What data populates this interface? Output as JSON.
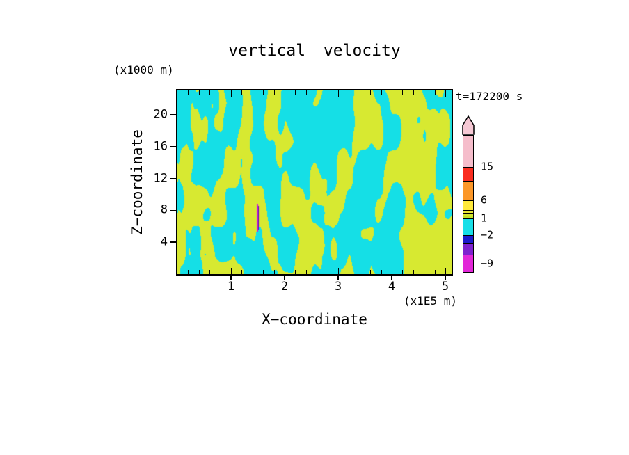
{
  "title": "vertical velocity",
  "timestamp": "t=172200 s",
  "axes": {
    "y_unit": "(x1000 m)",
    "x_unit": "(x1E5 m)",
    "y_label": "Z−coordinate",
    "x_label": "X−coordinate",
    "x_tick_labels": [
      "1",
      "2",
      "3",
      "4",
      "5"
    ],
    "y_tick_labels": [
      "4",
      "8",
      "12",
      "16",
      "20"
    ]
  },
  "field_render": {
    "positive_color": "#d7e931",
    "negative_color": "#15dfe6",
    "spike_colors": [
      "#cf1fd6",
      "#5a10b0"
    ]
  },
  "chart_data": {
    "type": "heatmap",
    "title": "vertical velocity",
    "xlabel": "X-coordinate",
    "ylabel": "Z-coordinate",
    "x_unit_note": "(x1E5 m)",
    "y_unit_note": "(x1000 m)",
    "time_label": "t=172200 s",
    "xlim": [
      0,
      5.1
    ],
    "ylim": [
      0,
      23
    ],
    "x_ticks": [
      1,
      2,
      3,
      4,
      5
    ],
    "y_ticks": [
      4,
      8,
      12,
      16,
      20
    ],
    "x_minor_step": 0.2,
    "grid": false,
    "legend_position": "right colorbar with upward arrow cap",
    "contour_levels": [
      -9,
      -2,
      1,
      6,
      15
    ],
    "field_summary": "Irregular interleaved cells filling the panel: yellow-green = weak positive vertical velocity (approx 1 to 6), cyan = weak negative (approx -2 to 1); fine vertical striping near the left boundary, broader cells in the upper right; one narrow intense downdraft streak (below -9, magenta/purple) near x=1.5 (x1E5 m), z=4-7 (x1000 m).",
    "colorbar": {
      "arrow_color": "#f5c8d4",
      "labels": [
        "15",
        "6",
        "1",
        "−2",
        "−9"
      ],
      "segments": [
        {
          "color": "#f5bdcb",
          "h": 46,
          "label": "15"
        },
        {
          "color": "#fa2d20",
          "h": 20
        },
        {
          "color": "#fc9728",
          "h": 28,
          "label": "6"
        },
        {
          "color": "#ffe93c",
          "h": 14
        },
        {
          "color": "#e9e838",
          "h": 4
        },
        {
          "color": "#d5e630",
          "h": 4
        },
        {
          "color": "#c0e229",
          "h": 4,
          "label": "1"
        },
        {
          "color": "#18dfe8",
          "h": 24,
          "label": "−2"
        },
        {
          "color": "#1c1bcd",
          "h": 11
        },
        {
          "color": "#7e22cf",
          "h": 17
        },
        {
          "color": "#e227d8",
          "h": 25,
          "label": "−9",
          "label_pos": "mid"
        }
      ]
    }
  }
}
